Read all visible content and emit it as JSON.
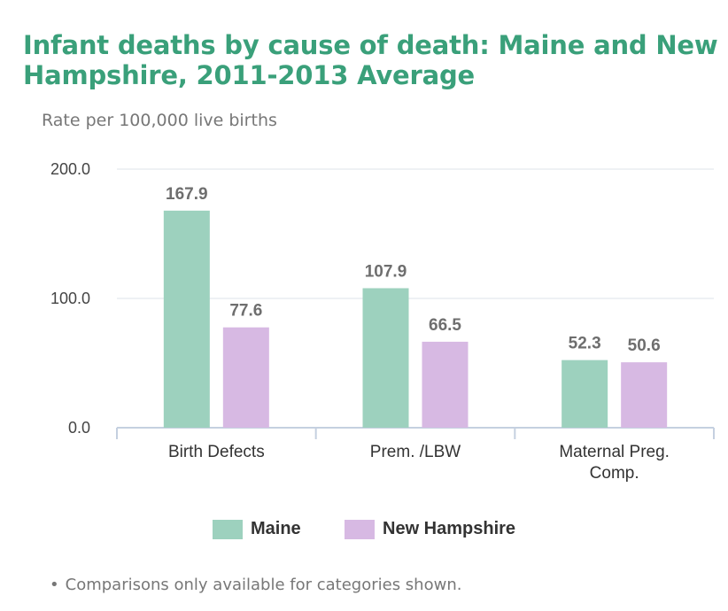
{
  "chart_data": {
    "type": "bar",
    "title": "Infant deaths by cause of death: Maine and New Hampshire, 2011-2013 Average",
    "ylabel": "Rate per 100,000 live births",
    "xlabel": "",
    "categories": [
      [
        "Birth Defects"
      ],
      [
        "Prem. /LBW"
      ],
      [
        "Maternal Preg.",
        "Comp."
      ]
    ],
    "series": [
      {
        "name": "Maine",
        "values": [
          167.9,
          107.9,
          52.3
        ],
        "labels": [
          "167.9",
          "107.9",
          "52.3"
        ],
        "color": "#9dd1be"
      },
      {
        "name": "New Hampshire",
        "values": [
          77.6,
          66.5,
          50.6
        ],
        "labels": [
          "77.6",
          "66.5",
          "50.6"
        ],
        "color": "#d7b9e3"
      }
    ],
    "ylim": [
      0,
      200
    ],
    "yticks": [
      0,
      100,
      200
    ],
    "ytick_labels": [
      "0.0",
      "100.0",
      "200.0"
    ],
    "grid": true,
    "legend_position": "bottom"
  },
  "colors": {
    "title": "#3aa07a"
  },
  "footnote": "Comparisons only available for categories shown."
}
